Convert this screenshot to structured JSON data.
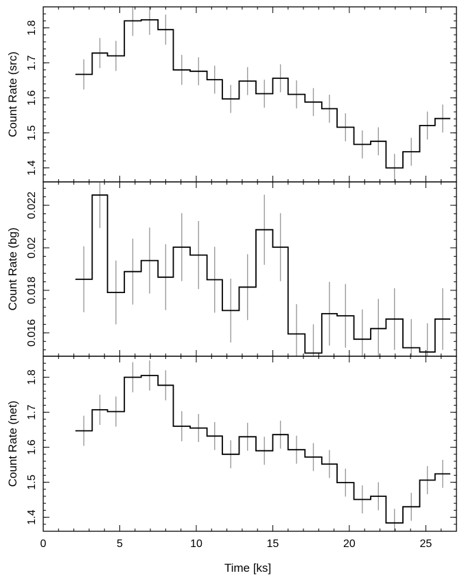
{
  "chart_data": {
    "type": "line",
    "style": "step histogram with vertical error bars",
    "xlabel": "Time [ks]",
    "xlim": [
      0,
      27
    ],
    "x_ticks": [
      0,
      5,
      10,
      15,
      20,
      25
    ],
    "x_tick_labels": [
      "0",
      "5",
      "10",
      "15",
      "20",
      "25"
    ],
    "grid": false,
    "line_color": "#000000",
    "errorbar_color": "#9a9a9a",
    "panels": [
      {
        "id": "src",
        "ylabel": "Count Rate (src)",
        "ylim": [
          1.36,
          1.86
        ],
        "y_ticks": [
          1.4,
          1.5,
          1.6,
          1.7,
          1.8
        ],
        "y_tick_labels": [
          "1.4",
          "1.5",
          "1.6",
          "1.7",
          "1.8"
        ],
        "y_minor_step": 0.02,
        "bin_edges": [
          2.1,
          3.2,
          4.2,
          5.3,
          6.4,
          7.5,
          8.5,
          9.6,
          10.7,
          11.7,
          12.8,
          13.9,
          15.0,
          16.0,
          17.1,
          18.2,
          19.2,
          20.3,
          21.4,
          22.4,
          23.5,
          24.6,
          25.6,
          26.6
        ],
        "values": [
          1.667,
          1.728,
          1.72,
          1.82,
          1.823,
          1.795,
          1.68,
          1.676,
          1.652,
          1.597,
          1.648,
          1.612,
          1.656,
          1.61,
          1.588,
          1.569,
          1.516,
          1.467,
          1.476,
          1.4,
          1.446,
          1.521,
          1.541
        ],
        "errors": [
          0.043,
          0.043,
          0.043,
          0.043,
          0.043,
          0.043,
          0.043,
          0.04,
          0.04,
          0.04,
          0.04,
          0.04,
          0.04,
          0.04,
          0.04,
          0.04,
          0.04,
          0.04,
          0.04,
          0.04,
          0.04,
          0.04,
          0.04
        ]
      },
      {
        "id": "bg",
        "ylabel": "Count Rate (bg)",
        "ylim": [
          0.0149,
          0.0231
        ],
        "y_ticks": [
          0.016,
          0.018,
          0.02,
          0.022
        ],
        "y_tick_labels": [
          "0.016",
          "0.018",
          "0.02",
          "0.022"
        ],
        "y_minor_step": 0.0004,
        "bin_edges": [
          2.1,
          3.2,
          4.2,
          5.3,
          6.4,
          7.5,
          8.5,
          9.6,
          10.7,
          11.7,
          12.8,
          13.9,
          15.0,
          16.0,
          17.1,
          18.2,
          19.2,
          20.3,
          21.4,
          22.4,
          23.5,
          24.6,
          25.6,
          26.6
        ],
        "values": [
          0.01852,
          0.02248,
          0.0179,
          0.01888,
          0.0194,
          0.01862,
          0.02003,
          0.01966,
          0.0185,
          0.01705,
          0.01815,
          0.02085,
          0.02003,
          0.01595,
          0.01505,
          0.0169,
          0.0168,
          0.0157,
          0.0162,
          0.01665,
          0.0153,
          0.0151,
          0.01665
        ],
        "errors": [
          0.00155,
          0.00155,
          0.0015,
          0.00155,
          0.00155,
          0.00155,
          0.0016,
          0.0016,
          0.00155,
          0.0015,
          0.00155,
          0.00165,
          0.0016,
          0.0014,
          0.00135,
          0.0015,
          0.0015,
          0.0014,
          0.0014,
          0.00145,
          0.00135,
          0.00135,
          0.00145
        ]
      },
      {
        "id": "net",
        "ylabel": "Count Rate (net)",
        "ylim": [
          1.36,
          1.86
        ],
        "y_ticks": [
          1.4,
          1.5,
          1.6,
          1.7,
          1.8
        ],
        "y_tick_labels": [
          "1.4",
          "1.5",
          "1.6",
          "1.7",
          "1.8"
        ],
        "y_minor_step": 0.02,
        "bin_edges": [
          2.1,
          3.2,
          4.2,
          5.3,
          6.4,
          7.5,
          8.5,
          9.6,
          10.7,
          11.7,
          12.8,
          13.9,
          15.0,
          16.0,
          17.1,
          18.2,
          19.2,
          20.3,
          21.4,
          22.4,
          23.5,
          24.6,
          25.6,
          26.6
        ],
        "values": [
          1.647,
          1.707,
          1.702,
          1.8,
          1.805,
          1.777,
          1.66,
          1.655,
          1.632,
          1.58,
          1.63,
          1.59,
          1.636,
          1.593,
          1.572,
          1.552,
          1.499,
          1.451,
          1.46,
          1.384,
          1.43,
          1.506,
          1.524
        ],
        "errors": [
          0.043,
          0.043,
          0.043,
          0.043,
          0.043,
          0.043,
          0.043,
          0.04,
          0.04,
          0.04,
          0.04,
          0.04,
          0.04,
          0.04,
          0.04,
          0.04,
          0.04,
          0.04,
          0.04,
          0.04,
          0.04,
          0.04,
          0.04
        ]
      }
    ]
  }
}
